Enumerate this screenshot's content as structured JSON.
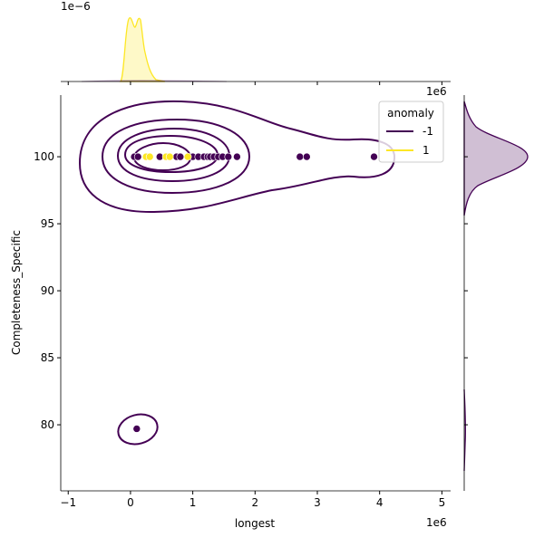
{
  "chart_data": {
    "type": "scatter",
    "subtype": "jointplot-kde",
    "xlabel": "longest",
    "ylabel": "Completeness_Specific",
    "x_offset_label": "1e6",
    "top_marginal_offset_label": "1e−6",
    "xlim": [
      -1.12,
      5.14
    ],
    "ylim": [
      75.07,
      104.6
    ],
    "x_ticks": [
      -1,
      0,
      1,
      2,
      3,
      4,
      5
    ],
    "y_ticks": [
      80,
      85,
      90,
      95,
      100
    ],
    "x_unit_scale": 1000000,
    "legend": {
      "title": "anomaly",
      "placement": "top-right",
      "entries": [
        {
          "label": "-1",
          "color": "#440154"
        },
        {
          "label": "1",
          "color": "#fde725"
        }
      ]
    },
    "series": [
      {
        "name": "-1",
        "color": "#440154",
        "points": [
          [
            0.06,
            100
          ],
          [
            0.12,
            100
          ],
          [
            0.47,
            100
          ],
          [
            0.74,
            100
          ],
          [
            0.8,
            100
          ],
          [
            1.0,
            100
          ],
          [
            1.09,
            100
          ],
          [
            1.18,
            100
          ],
          [
            1.24,
            100
          ],
          [
            1.28,
            100
          ],
          [
            1.34,
            100
          ],
          [
            1.41,
            100
          ],
          [
            1.48,
            100
          ],
          [
            1.57,
            100
          ],
          [
            1.71,
            100
          ],
          [
            2.72,
            100
          ],
          [
            2.83,
            100
          ],
          [
            3.91,
            100
          ],
          [
            0.1,
            79.7
          ]
        ]
      },
      {
        "name": "1",
        "color": "#fde725",
        "points": [
          [
            0.25,
            100
          ],
          [
            0.31,
            100
          ],
          [
            0.57,
            100
          ],
          [
            0.63,
            100
          ],
          [
            0.92,
            100
          ]
        ]
      }
    ]
  }
}
